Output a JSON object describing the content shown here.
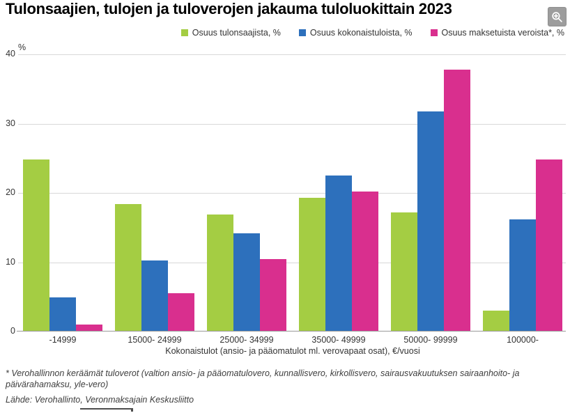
{
  "page": {
    "title": "Tulonsaajien, tulojen ja tuloverojen jakauma tuloluokittain 2023",
    "footnote": "* Verohallinnon keräämät tuloverot (valtion ansio- ja pääomatulovero, kunnallisvero, kirkollisvero, sairausvakuutuksen sairaanhoito- ja päivärahamaksu, yle-vero)",
    "source": "Lähde: Verohallinto, Veronmaksajain Keskusliitto",
    "zoom_button_icon": "magnifier-plus"
  },
  "chart_data": {
    "type": "bar",
    "title": "Tulonsaajien, tulojen ja tuloverojen jakauma tuloluokittain 2023",
    "categories": [
      "-14999",
      "15000- 24999",
      "25000- 34999",
      "35000- 49999",
      "50000- 99999",
      "100000-"
    ],
    "series": [
      {
        "name": "Osuus tulonsaajista, %",
        "color": "#a4cd43",
        "values": [
          24.8,
          18.4,
          16.9,
          19.3,
          17.2,
          3.0
        ]
      },
      {
        "name": "Osuus kokonaistuloista, %",
        "color": "#2d70bc",
        "values": [
          4.9,
          10.3,
          14.2,
          22.5,
          31.8,
          16.2
        ]
      },
      {
        "name": "Osuus maksetuista veroista*, %",
        "color": "#d92f8e",
        "values": [
          1.0,
          5.5,
          10.5,
          20.2,
          37.8,
          24.8
        ]
      }
    ],
    "xlabel": "Kokonaistulot (ansio- ja pääomatulot ml. verovapaat osat), €/vuosi",
    "ylabel": "%",
    "ylim": [
      0,
      40
    ],
    "yticks": [
      0,
      10,
      20,
      30,
      40
    ],
    "grid": true,
    "legend_position": "top-right"
  }
}
